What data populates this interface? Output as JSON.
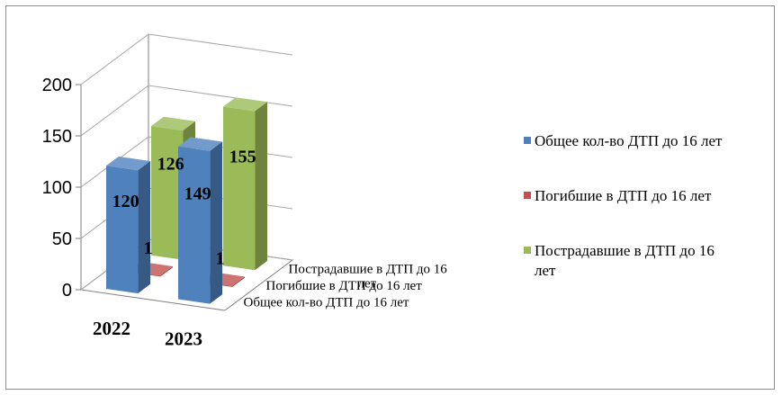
{
  "chart_data": {
    "type": "bar",
    "categories": [
      "2022",
      "2023"
    ],
    "series": [
      {
        "name": "Общее кол-во ДТП до 16 лет",
        "values": [
          120,
          149
        ],
        "color": "#4f81bd"
      },
      {
        "name": "Погибшие в ДТП до 16 лет",
        "values": [
          1,
          1
        ],
        "color": "#c0504d"
      },
      {
        "name": "Пострадавшие в ДТП до 16 лет",
        "values": [
          126,
          155
        ],
        "color": "#9bbb59"
      }
    ],
    "depth_labels": [
      "Общее кол-во ДТП до 16 лет",
      "Погибшие в ДТП до 16 лет",
      "Пострадавшие в ДТП до 16 лет"
    ],
    "yticks": [
      "0",
      "50",
      "100",
      "150",
      "200"
    ],
    "ylim": [
      0,
      200
    ],
    "grid": true,
    "legend": "right",
    "three_d": true
  }
}
